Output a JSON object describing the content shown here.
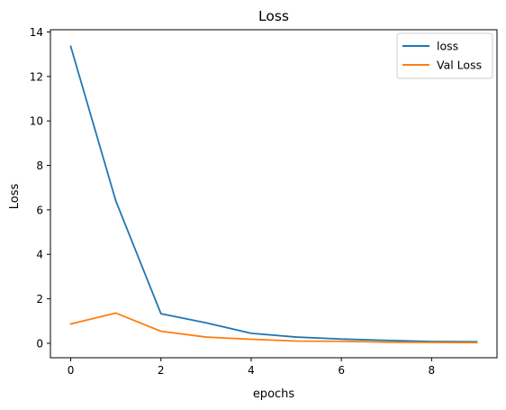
{
  "chart_data": {
    "type": "line",
    "title": "Loss",
    "xlabel": "epochs",
    "ylabel": "Loss",
    "xlim": [
      -0.45,
      9.45
    ],
    "ylim": [
      -0.65,
      14.1
    ],
    "x_ticks": [
      0,
      2,
      4,
      6,
      8
    ],
    "y_ticks": [
      0,
      2,
      4,
      6,
      8,
      10,
      12,
      14
    ],
    "grid": false,
    "legend_position": "upper right",
    "x": [
      0,
      1,
      2,
      3,
      4,
      5,
      6,
      7,
      8,
      9
    ],
    "series": [
      {
        "name": "loss",
        "color": "#1f77b4",
        "values": [
          13.35,
          6.4,
          1.33,
          0.92,
          0.45,
          0.28,
          0.19,
          0.13,
          0.08,
          0.07
        ]
      },
      {
        "name": "Val Loss",
        "color": "#ff7f0e",
        "values": [
          0.87,
          1.36,
          0.54,
          0.28,
          0.18,
          0.1,
          0.09,
          0.05,
          0.04,
          0.03
        ]
      }
    ]
  }
}
